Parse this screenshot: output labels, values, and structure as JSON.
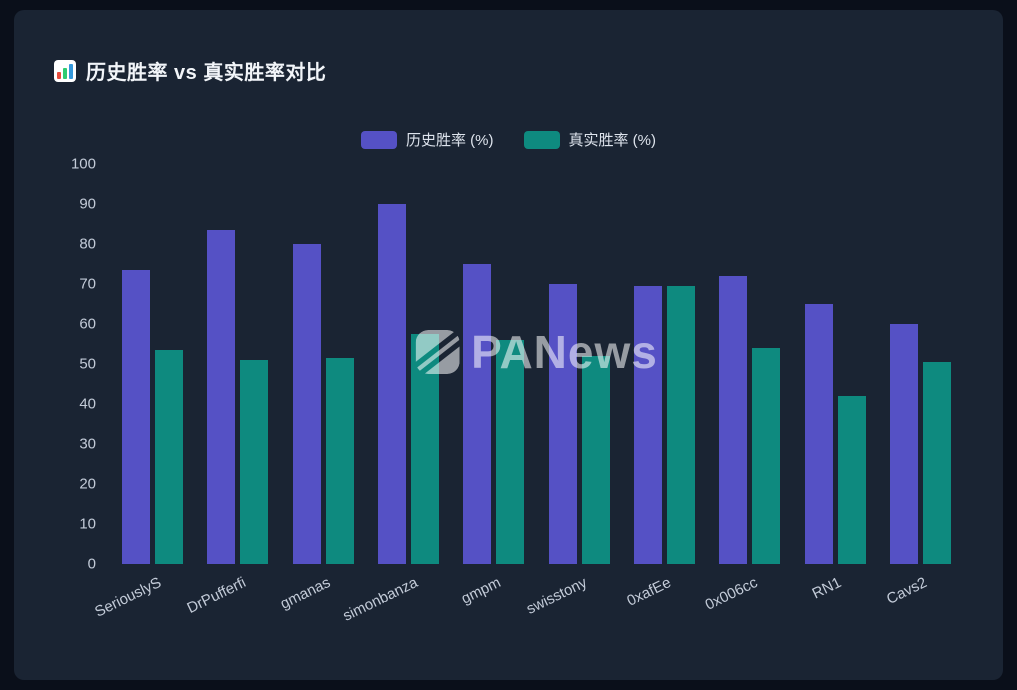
{
  "card": {
    "title": "历史胜率 vs 真实胜率对比"
  },
  "watermark": {
    "text": "PANews"
  },
  "colors": {
    "background": "#0a0f1a",
    "card": "#1a2433",
    "title_text": "#f2f5f9",
    "axis_label": "#c3cbd8",
    "legend_text": "#dde3ec",
    "historical_bar": "#5551c5",
    "actual_bar": "#0e8a7f"
  },
  "chart_data": {
    "type": "bar",
    "title": "历史胜率 vs 真实胜率对比",
    "categories": [
      "SeriouslyS",
      "DrPufferfi",
      "gmanas",
      "simonbanza",
      "gmpm",
      "swisstony",
      "0xafEe",
      "0x006cc",
      "RN1",
      "Cavs2"
    ],
    "series": [
      {
        "name": "历史胜率 (%)",
        "color": "#5551c5",
        "values": [
          73.5,
          83.5,
          80,
          90,
          75,
          70,
          69.5,
          72,
          65,
          60
        ]
      },
      {
        "name": "真实胜率 (%)",
        "color": "#0e8a7f",
        "values": [
          53.5,
          51,
          51.5,
          57.5,
          56,
          52,
          69.5,
          54,
          42,
          50.5
        ]
      }
    ],
    "xlabel": "",
    "ylabel": "",
    "ylim": [
      0,
      100
    ],
    "yticks": [
      0,
      10,
      20,
      30,
      40,
      50,
      60,
      70,
      80,
      90,
      100
    ],
    "grid": false,
    "legend_position": "top-center",
    "x_label_rotation": -26
  }
}
